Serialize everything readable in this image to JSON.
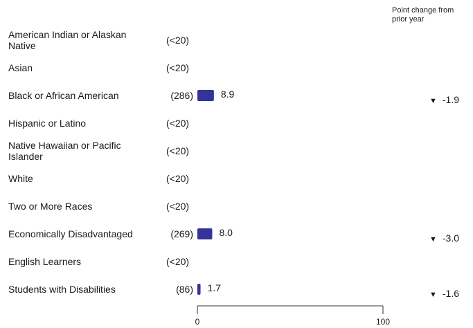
{
  "chart_data": {
    "type": "bar",
    "change_header": "Point change from prior year",
    "xlim": [
      0,
      100
    ],
    "x_ticks": [
      "0",
      "100"
    ],
    "bar_color": "#333399",
    "rows": [
      {
        "label": "American Indian or Alaskan Native",
        "count": "(<20)",
        "value": null,
        "value_label": "",
        "change": ""
      },
      {
        "label": "Asian",
        "count": "(<20)",
        "value": null,
        "value_label": "",
        "change": ""
      },
      {
        "label": "Black or African American",
        "count": "(286)",
        "value": 8.9,
        "value_label": "8.9",
        "change": "-1.9"
      },
      {
        "label": "Hispanic or Latino",
        "count": "(<20)",
        "value": null,
        "value_label": "",
        "change": ""
      },
      {
        "label": "Native Hawaiian or Pacific Islander",
        "count": "(<20)",
        "value": null,
        "value_label": "",
        "change": ""
      },
      {
        "label": "White",
        "count": "(<20)",
        "value": null,
        "value_label": "",
        "change": ""
      },
      {
        "label": "Two or More Races",
        "count": "(<20)",
        "value": null,
        "value_label": "",
        "change": ""
      },
      {
        "label": "Economically Disadvantaged",
        "count": "(269)",
        "value": 8.0,
        "value_label": "8.0",
        "change": "-3.0"
      },
      {
        "label": "English Learners",
        "count": "(<20)",
        "value": null,
        "value_label": "",
        "change": ""
      },
      {
        "label": "Students with Disabilities",
        "count": "(86)",
        "value": 1.7,
        "value_label": "1.7",
        "change": "-1.6"
      }
    ]
  }
}
